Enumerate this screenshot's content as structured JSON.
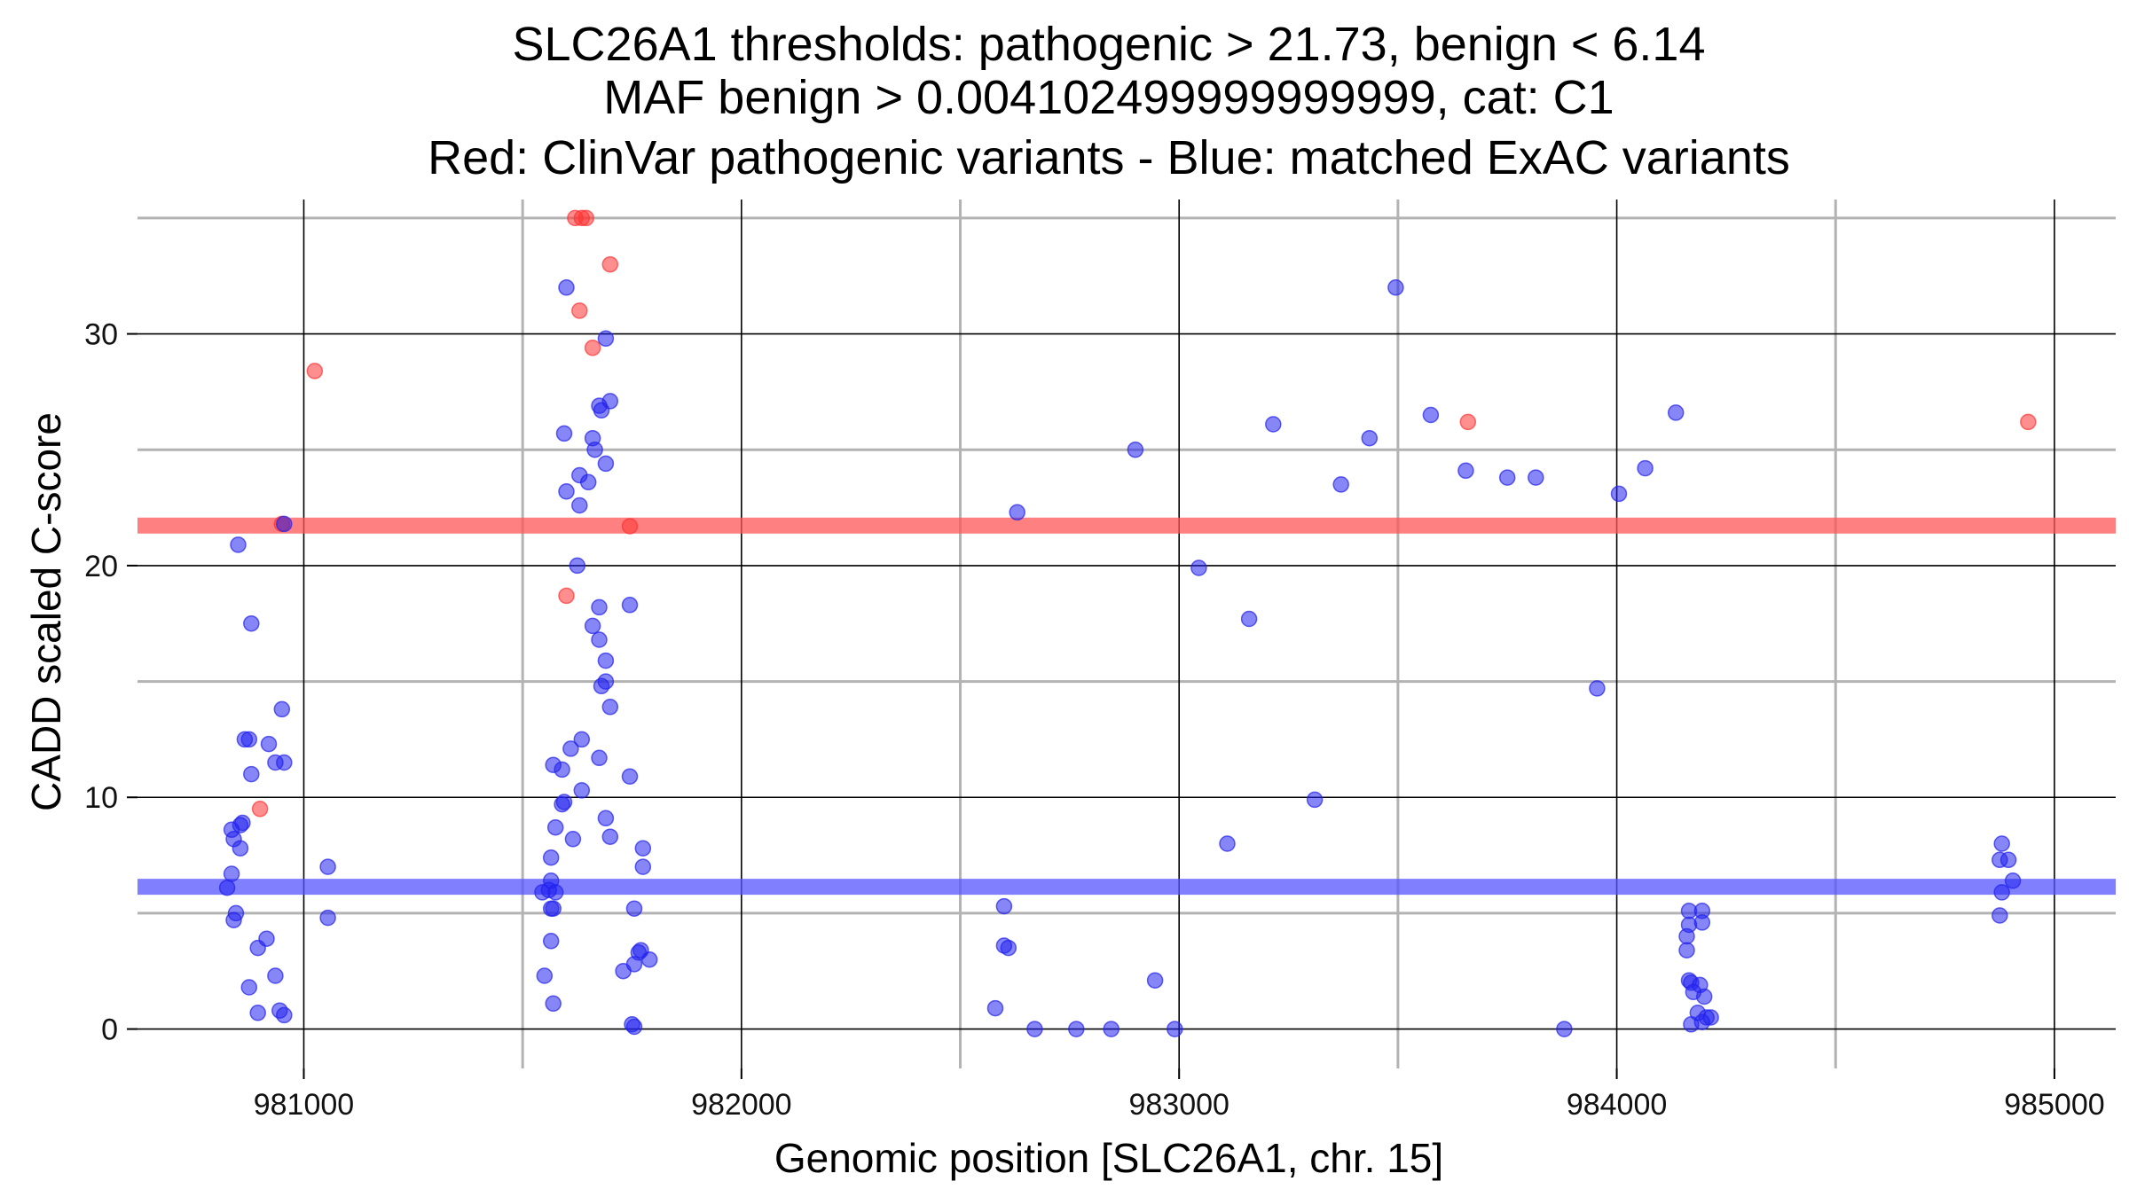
{
  "chart_data": {
    "type": "scatter",
    "title_lines": [
      "SLC26A1 thresholds: pathogenic > 21.73, benign < 6.14",
      "MAF benign > 0.004102499999999999, cat: C1",
      "Red: ClinVar pathogenic variants - Blue: matched ExAC variants"
    ],
    "xlabel": "Genomic position [SLC26A1, chr. 15]",
    "ylabel": "CADD scaled C-score",
    "xlim": [
      980620,
      985140
    ],
    "ylim": [
      -1.7,
      35.8
    ],
    "xticks": [
      981000,
      982000,
      983000,
      984000,
      985000
    ],
    "xtick_labels": [
      "981000",
      "982000",
      "983000",
      "984000",
      "985000"
    ],
    "x_minor_grid": [
      980500,
      981500,
      982500,
      983500,
      984500
    ],
    "yticks": [
      0,
      10,
      20,
      30
    ],
    "ytick_labels": [
      "0",
      "10",
      "20",
      "30"
    ],
    "y_minor_grid": [
      5,
      15,
      25,
      35
    ],
    "grid": true,
    "thresholds": [
      {
        "name": "pathogenic",
        "value": 21.73,
        "color": "#ff5555"
      },
      {
        "name": "benign",
        "value": 6.14,
        "color": "#5555ff"
      }
    ],
    "colors": {
      "pathogenic": "#ff3333",
      "benign": "#2222ee"
    },
    "series": [
      {
        "key": "pathogenic",
        "points": [
          [
            981025,
            28.4
          ],
          [
            980950,
            21.8
          ],
          [
            980900,
            9.5
          ],
          [
            981620,
            35.0
          ],
          [
            981635,
            35.0
          ],
          [
            981645,
            35.0
          ],
          [
            981700,
            33.0
          ],
          [
            981630,
            31.0
          ],
          [
            981660,
            29.4
          ],
          [
            981745,
            21.7
          ],
          [
            981600,
            18.7
          ],
          [
            983660,
            26.2
          ],
          [
            984940,
            26.2
          ]
        ]
      },
      {
        "key": "benign",
        "points": [
          [
            980850,
            20.9
          ],
          [
            980880,
            17.5
          ],
          [
            980955,
            21.8
          ],
          [
            980950,
            13.8
          ],
          [
            980865,
            12.5
          ],
          [
            980875,
            12.5
          ],
          [
            980920,
            12.3
          ],
          [
            980935,
            11.5
          ],
          [
            980955,
            11.5
          ],
          [
            980880,
            11.0
          ],
          [
            980860,
            8.9
          ],
          [
            980855,
            8.8
          ],
          [
            980835,
            8.6
          ],
          [
            980840,
            8.2
          ],
          [
            980855,
            7.8
          ],
          [
            981055,
            7.0
          ],
          [
            980835,
            6.7
          ],
          [
            980825,
            6.1
          ],
          [
            980845,
            5.0
          ],
          [
            980840,
            4.7
          ],
          [
            981055,
            4.8
          ],
          [
            980915,
            3.9
          ],
          [
            980895,
            3.5
          ],
          [
            980935,
            2.3
          ],
          [
            980875,
            1.8
          ],
          [
            980895,
            0.7
          ],
          [
            980945,
            0.8
          ],
          [
            980955,
            0.6
          ],
          [
            981600,
            32.0
          ],
          [
            981690,
            29.8
          ],
          [
            981675,
            26.9
          ],
          [
            981700,
            27.1
          ],
          [
            981680,
            26.7
          ],
          [
            981595,
            25.7
          ],
          [
            981660,
            25.5
          ],
          [
            981665,
            25.0
          ],
          [
            981690,
            24.4
          ],
          [
            981630,
            23.9
          ],
          [
            981650,
            23.6
          ],
          [
            981600,
            23.2
          ],
          [
            981630,
            22.6
          ],
          [
            981625,
            20.0
          ],
          [
            981745,
            18.3
          ],
          [
            981675,
            18.2
          ],
          [
            981660,
            17.4
          ],
          [
            981675,
            16.8
          ],
          [
            981690,
            15.9
          ],
          [
            981690,
            15.0
          ],
          [
            981680,
            14.8
          ],
          [
            981700,
            13.9
          ],
          [
            981635,
            12.5
          ],
          [
            981610,
            12.1
          ],
          [
            981675,
            11.7
          ],
          [
            981570,
            11.4
          ],
          [
            981590,
            11.2
          ],
          [
            981745,
            10.9
          ],
          [
            981635,
            10.3
          ],
          [
            981595,
            9.8
          ],
          [
            981590,
            9.7
          ],
          [
            981690,
            9.1
          ],
          [
            981575,
            8.7
          ],
          [
            981700,
            8.3
          ],
          [
            981615,
            8.2
          ],
          [
            981775,
            7.8
          ],
          [
            981775,
            7.0
          ],
          [
            981565,
            7.4
          ],
          [
            981565,
            6.4
          ],
          [
            981545,
            5.9
          ],
          [
            981560,
            6.0
          ],
          [
            981575,
            5.9
          ],
          [
            981565,
            5.2
          ],
          [
            981570,
            5.2
          ],
          [
            981755,
            5.2
          ],
          [
            981565,
            3.8
          ],
          [
            981770,
            3.4
          ],
          [
            981765,
            3.3
          ],
          [
            981790,
            3.0
          ],
          [
            981755,
            2.8
          ],
          [
            981730,
            2.5
          ],
          [
            981550,
            2.3
          ],
          [
            981570,
            1.1
          ],
          [
            981750,
            0.2
          ],
          [
            981755,
            0.1
          ],
          [
            982630,
            22.3
          ],
          [
            982900,
            25.0
          ],
          [
            983045,
            19.9
          ],
          [
            983160,
            17.7
          ],
          [
            983110,
            8.0
          ],
          [
            983215,
            26.1
          ],
          [
            983310,
            9.9
          ],
          [
            983370,
            23.5
          ],
          [
            983435,
            25.5
          ],
          [
            983495,
            32.0
          ],
          [
            983575,
            26.5
          ],
          [
            983655,
            24.1
          ],
          [
            983750,
            23.8
          ],
          [
            983815,
            23.8
          ],
          [
            983955,
            14.7
          ],
          [
            984005,
            23.1
          ],
          [
            984065,
            24.2
          ],
          [
            984135,
            26.6
          ],
          [
            982600,
            5.3
          ],
          [
            982600,
            3.6
          ],
          [
            982610,
            3.5
          ],
          [
            982580,
            0.9
          ],
          [
            982670,
            0.0
          ],
          [
            982765,
            0.0
          ],
          [
            982845,
            0.0
          ],
          [
            982945,
            2.1
          ],
          [
            982990,
            0.0
          ],
          [
            983880,
            0.0
          ],
          [
            984165,
            5.1
          ],
          [
            984195,
            5.1
          ],
          [
            984165,
            4.5
          ],
          [
            984195,
            4.6
          ],
          [
            984160,
            4.0
          ],
          [
            984160,
            3.4
          ],
          [
            984165,
            2.1
          ],
          [
            984170,
            2.0
          ],
          [
            984190,
            1.9
          ],
          [
            984175,
            1.6
          ],
          [
            984200,
            1.4
          ],
          [
            984185,
            0.7
          ],
          [
            984205,
            0.5
          ],
          [
            984215,
            0.5
          ],
          [
            984170,
            0.2
          ],
          [
            984195,
            0.3
          ],
          [
            984880,
            8.0
          ],
          [
            984875,
            7.3
          ],
          [
            984895,
            7.3
          ],
          [
            984905,
            6.4
          ],
          [
            984880,
            5.9
          ],
          [
            984875,
            4.9
          ]
        ]
      }
    ]
  }
}
